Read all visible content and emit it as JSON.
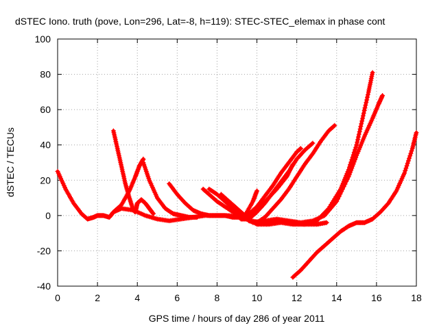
{
  "chart_data": {
    "type": "scatter",
    "title": "dSTEC Iono. truth (pove, Lon=296, Lat=-8, h=119): STEC-STEC_elemax in phase cont",
    "xlabel": "GPS time / hours of day 286 of year 2011",
    "ylabel": "dSTEC  / TECUs",
    "xlim": [
      0,
      18
    ],
    "ylim": [
      -40,
      100
    ],
    "xticks": [
      0,
      2,
      4,
      6,
      8,
      10,
      12,
      14,
      16,
      18
    ],
    "yticks": [
      -40,
      -20,
      0,
      20,
      40,
      60,
      80,
      100
    ],
    "grid": true,
    "marker": "+",
    "color": "#ff0000",
    "series": [
      {
        "x": [
          0.0,
          0.4,
          0.8,
          1.2,
          1.5,
          1.8,
          2.0,
          2.3,
          2.6,
          2.8,
          3.2,
          3.8,
          4.4,
          5.0,
          5.6,
          6.2,
          6.8,
          7.4,
          8.0,
          8.6,
          9.2,
          9.7,
          10.3,
          11.0,
          11.8,
          12.4,
          13.0,
          13.5
        ],
        "y": [
          25,
          15,
          7,
          1,
          -2,
          -1,
          0,
          0,
          -1,
          2,
          4,
          3,
          0,
          -2,
          -3,
          -2,
          -1,
          0,
          0,
          0,
          -1,
          -3,
          -4,
          -3,
          -4,
          -5,
          -5,
          -4
        ]
      },
      {
        "x": [
          2.8,
          3.0,
          3.2,
          3.4,
          3.6,
          3.8,
          3.9,
          4.0,
          4.2,
          4.4,
          4.6,
          4.8
        ],
        "y": [
          48,
          38,
          28,
          18,
          10,
          3,
          2,
          7,
          9,
          7,
          4,
          1
        ]
      },
      {
        "x": [
          2.8,
          3.2,
          3.6,
          3.9,
          4.1,
          4.3
        ],
        "y": [
          2,
          6,
          14,
          22,
          28,
          32
        ]
      },
      {
        "x": [
          4.3,
          4.6,
          5.0,
          5.4,
          5.8,
          6.2,
          6.6,
          7.0
        ],
        "y": [
          30,
          20,
          10,
          4,
          1,
          0,
          -1,
          -1
        ]
      },
      {
        "x": [
          5.6,
          6.0,
          6.4,
          6.8,
          7.2,
          7.6,
          8.0,
          8.4,
          8.8,
          9.2,
          9.6,
          10.0,
          10.4,
          10.8,
          11.2,
          11.6,
          12.0,
          12.2
        ],
        "y": [
          18,
          12,
          7,
          3,
          1,
          0,
          0,
          0,
          -1,
          -1,
          1,
          5,
          11,
          17,
          24,
          30,
          36,
          38
        ]
      },
      {
        "x": [
          7.3,
          7.6,
          8.0,
          8.4,
          8.8,
          9.2,
          9.6,
          10.0,
          10.4,
          10.8,
          11.2,
          11.6,
          12.0,
          12.4,
          12.8
        ],
        "y": [
          15,
          12,
          8,
          5,
          2,
          -2,
          -2,
          2,
          7,
          13,
          19,
          25,
          32,
          37,
          41
        ]
      },
      {
        "x": [
          7.6,
          8.0,
          8.4,
          8.8,
          9.2,
          9.6,
          10.0,
          10.4,
          10.8,
          11.2,
          11.6,
          12.0,
          12.4,
          12.8,
          13.2,
          13.6,
          13.9
        ],
        "y": [
          15,
          12,
          8,
          4,
          1,
          -3,
          -4,
          -1,
          4,
          9,
          15,
          22,
          29,
          35,
          42,
          48,
          51
        ]
      },
      {
        "x": [
          8.2,
          8.6,
          9.0,
          9.4,
          9.8,
          10.0
        ],
        "y": [
          12,
          8,
          4,
          0,
          8,
          14
        ]
      },
      {
        "x": [
          9.0,
          9.5,
          10.0,
          10.5,
          11.0,
          11.5,
          11.8
        ],
        "y": [
          0,
          -2,
          3,
          9,
          15,
          22,
          29
        ]
      },
      {
        "x": [
          9.2,
          9.8,
          10.4,
          11.0,
          11.6,
          12.2,
          12.8,
          13.4,
          14.0,
          14.6,
          15.0,
          15.4,
          15.8,
          16.1,
          16.3
        ],
        "y": [
          0,
          -4,
          -3,
          -2,
          -3,
          -4,
          -3,
          0,
          8,
          22,
          34,
          45,
          55,
          63,
          68
        ]
      },
      {
        "x": [
          9.4,
          10.0,
          10.6,
          11.2,
          11.8,
          12.4,
          13.0,
          13.6,
          14.2,
          14.6,
          15.0,
          15.3,
          15.6,
          15.8
        ],
        "y": [
          -1,
          -5,
          -5,
          -4,
          -5,
          -5,
          -3,
          4,
          15,
          26,
          40,
          55,
          70,
          81
        ]
      },
      {
        "x": [
          11.8,
          12.2,
          12.6,
          13.0,
          13.4,
          13.8,
          14.2,
          14.6,
          15.0,
          15.4,
          15.8,
          16.2,
          16.6,
          17.0,
          17.4,
          17.8,
          18.0
        ],
        "y": [
          -35,
          -31,
          -26,
          -21,
          -17,
          -13,
          -9,
          -6,
          -4,
          -4,
          -2,
          2,
          7,
          14,
          24,
          38,
          47
        ]
      }
    ]
  }
}
